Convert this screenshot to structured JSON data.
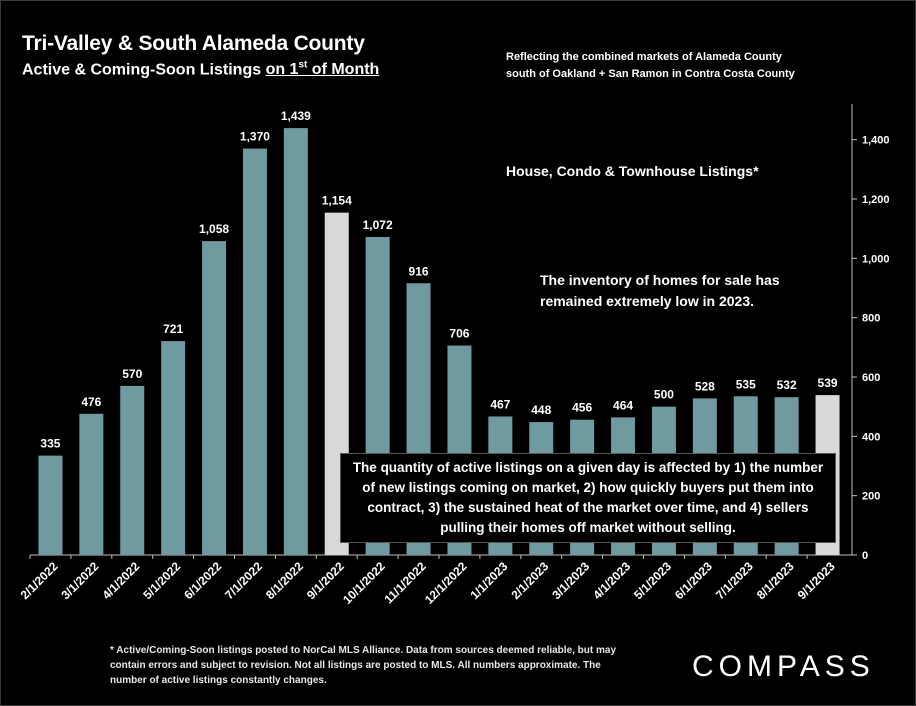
{
  "header": {
    "title": "Tri-Valley & South Alameda County",
    "subtitle_pre": "Active & Coming-Soon Listings ",
    "subtitle_ul_1": "on 1",
    "subtitle_sup": "st",
    "subtitle_ul_2": " of Month",
    "note_line1": "Reflecting the combined markets of Alameda County",
    "note_line2": "south of Oakland + San Ramon in Contra Costa County"
  },
  "annotations": {
    "listing_types": "House, Condo & Townhouse Listings*",
    "inventory_note": "The inventory of homes for sale has remained extremely low in 2023.",
    "callout": "The quantity of active listings on a given day is affected by 1) the number of new listings coming on market, 2) how quickly buyers put them into contract, 3) the sustained heat of the market over time, and 4) sellers pulling their homes off market without selling."
  },
  "footnote": "* Active/Coming-Soon listings posted to NorCal MLS Alliance.  Data from sources deemed reliable, but may contain errors and subject to revision.  Not all listings are posted to MLS. All numbers approximate. The number of active listings constantly changes.",
  "logo": "COMPASS",
  "colors": {
    "bar": "#6f9aa0",
    "highlight_bar": "#d9d9d9",
    "background": "#000000",
    "text": "#ffffff"
  },
  "chart_data": {
    "type": "bar",
    "title": "Tri-Valley & South Alameda County",
    "categories": [
      "2/1/2022",
      "3/1/2022",
      "4/1/2022",
      "5/1/2022",
      "6/1/2022",
      "7/1/2022",
      "8/1/2022",
      "9/1/2022",
      "10/1/2022",
      "11/1/2022",
      "12/1/2022",
      "1/1/2023",
      "2/1/2023",
      "3/1/2023",
      "4/1/2023",
      "5/1/2023",
      "6/1/2023",
      "7/1/2023",
      "8/1/2023",
      "9/1/2023"
    ],
    "values": [
      335,
      476,
      570,
      721,
      1058,
      1370,
      1439,
      1154,
      1072,
      916,
      706,
      467,
      448,
      456,
      464,
      500,
      528,
      535,
      532,
      539
    ],
    "data_labels": [
      "335",
      "476",
      "570",
      "721",
      "1,058",
      "1,370",
      "1,439",
      "1,154",
      "1,072",
      "916",
      "706",
      "467",
      "448",
      "456",
      "464",
      "500",
      "528",
      "535",
      "532",
      "539"
    ],
    "highlighted": [
      "9/1/2022",
      "9/1/2023"
    ],
    "ylim": [
      0,
      1500
    ],
    "yticks": [
      0,
      200,
      400,
      600,
      800,
      1000,
      1200,
      1400
    ],
    "ytick_labels": [
      "0",
      "200",
      "400",
      "600",
      "800",
      "1,000",
      "1,200",
      "1,400"
    ],
    "y_axis_side": "right",
    "xlabel": "",
    "ylabel": "",
    "grid": false
  }
}
